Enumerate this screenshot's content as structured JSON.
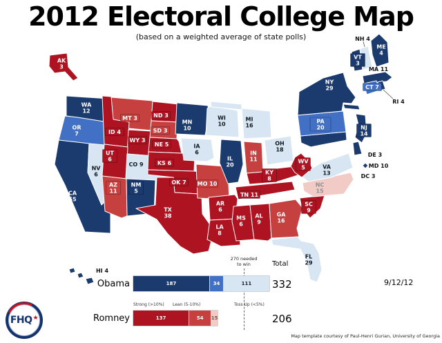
{
  "title": "2012 Electoral College Map",
  "subtitle": "(based on a weighted average of state polls)",
  "date": "9/12/12",
  "credit": "Map template courtesy of Paul-Henri Gurian, University of Georgia",
  "logo": {
    "text": "FHQ",
    "star": "★"
  },
  "palette": {
    "strong-dem": "#1b3a6d",
    "lean-dem": "#4170c4",
    "tossup-dem": "#d8e6f3",
    "strong-rep": "#ad1320",
    "lean-rep": "#c5403e",
    "tossup-rep": "#f2cbc7",
    "logo-navy": "#14326b",
    "logo-red": "#cf1020"
  },
  "chart": {
    "needed_line1": "270 needed",
    "needed_line2": "to win",
    "total_label": "Total",
    "legend": [
      "Strong (>10%)",
      "Lean (5-10%)",
      "Toss Up (<5%)"
    ],
    "rows": [
      {
        "name": "Obama",
        "segments": [
          187,
          34,
          111
        ],
        "total": 332
      },
      {
        "name": "Romney",
        "segments": [
          137,
          54,
          15
        ],
        "total": 206
      }
    ]
  },
  "chart_data": {
    "type": "bar",
    "orientation": "horizontal",
    "categories": [
      "Obama",
      "Romney"
    ],
    "series": [
      {
        "name": "Strong (>10%)",
        "values": [
          187,
          137
        ]
      },
      {
        "name": "Lean (5-10%)",
        "values": [
          34,
          54
        ]
      },
      {
        "name": "Toss Up (<5%)",
        "values": [
          111,
          15
        ]
      }
    ],
    "totals": [
      332,
      206
    ],
    "threshold": 270,
    "annotations": [
      "270 needed to win",
      "Total"
    ]
  },
  "map": {
    "states": {
      "WA": {
        "ev": 12,
        "cat": "strong-dem",
        "label": [
          "WA",
          "12"
        ]
      },
      "OR": {
        "ev": 7,
        "cat": "lean-dem",
        "label": [
          "OR",
          "7"
        ]
      },
      "CA": {
        "ev": 55,
        "cat": "strong-dem",
        "label": [
          "CA",
          "55"
        ]
      },
      "NV": {
        "ev": 6,
        "cat": "tossup-dem",
        "label": [
          "NV",
          "6"
        ]
      },
      "ID": {
        "ev": 4,
        "cat": "strong-rep",
        "label": [
          "ID 4"
        ]
      },
      "MT": {
        "ev": 3,
        "cat": "lean-rep",
        "label": [
          "MT 3"
        ]
      },
      "WY": {
        "ev": 3,
        "cat": "strong-rep",
        "label": [
          "WY 3"
        ]
      },
      "UT": {
        "ev": 6,
        "cat": "strong-rep",
        "label": [
          "UT",
          "6"
        ]
      },
      "CO": {
        "ev": 9,
        "cat": "tossup-dem",
        "label": [
          "CO 9"
        ]
      },
      "AZ": {
        "ev": 11,
        "cat": "lean-rep",
        "label": [
          "AZ",
          "11"
        ]
      },
      "NM": {
        "ev": 5,
        "cat": "strong-dem",
        "label": [
          "NM",
          "5"
        ]
      },
      "ND": {
        "ev": 3,
        "cat": "strong-rep",
        "label": [
          "ND 3"
        ]
      },
      "SD": {
        "ev": 3,
        "cat": "lean-rep",
        "label": [
          "SD 3"
        ]
      },
      "NE": {
        "ev": 5,
        "cat": "strong-rep",
        "label": [
          "NE 5"
        ]
      },
      "KS": {
        "ev": 6,
        "cat": "strong-rep",
        "label": [
          "KS 6"
        ]
      },
      "OK": {
        "ev": 7,
        "cat": "strong-rep",
        "label": [
          "OK 7"
        ]
      },
      "TX": {
        "ev": 38,
        "cat": "strong-rep",
        "label": [
          "TX",
          "38"
        ]
      },
      "MN": {
        "ev": 10,
        "cat": "strong-dem",
        "label": [
          "MN",
          "10"
        ]
      },
      "IA": {
        "ev": 6,
        "cat": "tossup-dem",
        "label": [
          "IA",
          "6"
        ]
      },
      "MO": {
        "ev": 10,
        "cat": "lean-rep",
        "label": [
          "MO 10"
        ]
      },
      "AR": {
        "ev": 6,
        "cat": "strong-rep",
        "label": [
          "AR",
          "6"
        ]
      },
      "LA": {
        "ev": 8,
        "cat": "strong-rep",
        "label": [
          "LA",
          "8"
        ]
      },
      "WI": {
        "ev": 10,
        "cat": "tossup-dem",
        "label": [
          "WI",
          "10"
        ]
      },
      "IL": {
        "ev": 20,
        "cat": "strong-dem",
        "label": [
          "IL",
          "20"
        ]
      },
      "MS": {
        "ev": 6,
        "cat": "strong-rep",
        "label": [
          "MS",
          "6"
        ]
      },
      "MI": {
        "ev": 16,
        "cat": "tossup-dem",
        "label": [
          "MI",
          "16"
        ]
      },
      "IN": {
        "ev": 11,
        "cat": "lean-rep",
        "label": [
          "IN",
          "11"
        ]
      },
      "OH": {
        "ev": 18,
        "cat": "tossup-dem",
        "label": [
          "OH",
          "18"
        ]
      },
      "KY": {
        "ev": 8,
        "cat": "strong-rep",
        "label": [
          "KY",
          "8"
        ]
      },
      "TN": {
        "ev": 11,
        "cat": "strong-rep",
        "label": [
          "TN 11"
        ]
      },
      "AL": {
        "ev": 9,
        "cat": "strong-rep",
        "label": [
          "AL",
          "9"
        ]
      },
      "GA": {
        "ev": 16,
        "cat": "lean-rep",
        "label": [
          "GA",
          "16"
        ]
      },
      "WV": {
        "ev": 5,
        "cat": "strong-rep",
        "label": [
          "WV",
          "5"
        ]
      },
      "SC": {
        "ev": 9,
        "cat": "strong-rep",
        "label": [
          "SC",
          "9"
        ]
      },
      "NC": {
        "ev": 15,
        "cat": "tossup-rep",
        "label": [
          "NC",
          "15"
        ]
      },
      "FL": {
        "ev": 29,
        "cat": "tossup-dem",
        "label": [
          "FL",
          "29"
        ]
      },
      "VA": {
        "ev": 13,
        "cat": "tossup-dem",
        "label": [
          "VA",
          "13"
        ]
      },
      "PA": {
        "ev": 20,
        "cat": "lean-dem",
        "label": [
          "PA",
          "20"
        ]
      },
      "NY": {
        "ev": 29,
        "cat": "strong-dem",
        "label": [
          "NY",
          "29"
        ]
      },
      "NJ": {
        "ev": 14,
        "cat": "strong-dem",
        "label": [
          "NJ",
          "14"
        ]
      },
      "DE": {
        "ev": 3,
        "cat": "strong-dem",
        "label": [
          "DE 3"
        ]
      },
      "MD": {
        "ev": 10,
        "cat": "strong-dem",
        "label": [
          "MD 10"
        ]
      },
      "DC": {
        "ev": 3,
        "cat": "strong-dem",
        "label": [
          "DC 3"
        ]
      },
      "CT": {
        "ev": 7,
        "cat": "lean-dem",
        "label": [
          "CT 7"
        ]
      },
      "RI": {
        "ev": 4,
        "cat": "strong-dem",
        "label": [
          "RI 4"
        ]
      },
      "MA": {
        "ev": 11,
        "cat": "strong-dem",
        "label": [
          "MA 11"
        ]
      },
      "VT": {
        "ev": 3,
        "cat": "strong-dem",
        "label": [
          "VT",
          "3"
        ]
      },
      "NH": {
        "ev": 4,
        "cat": "tossup-dem",
        "label": [
          "NH 4"
        ]
      },
      "ME": {
        "ev": 4,
        "cat": "strong-dem",
        "label": [
          "ME",
          "4"
        ]
      },
      "AK": {
        "ev": 3,
        "cat": "strong-rep",
        "label": [
          "AK",
          "3"
        ]
      },
      "HI": {
        "ev": 4,
        "cat": "strong-dem",
        "label": [
          "HI 4"
        ]
      }
    }
  }
}
